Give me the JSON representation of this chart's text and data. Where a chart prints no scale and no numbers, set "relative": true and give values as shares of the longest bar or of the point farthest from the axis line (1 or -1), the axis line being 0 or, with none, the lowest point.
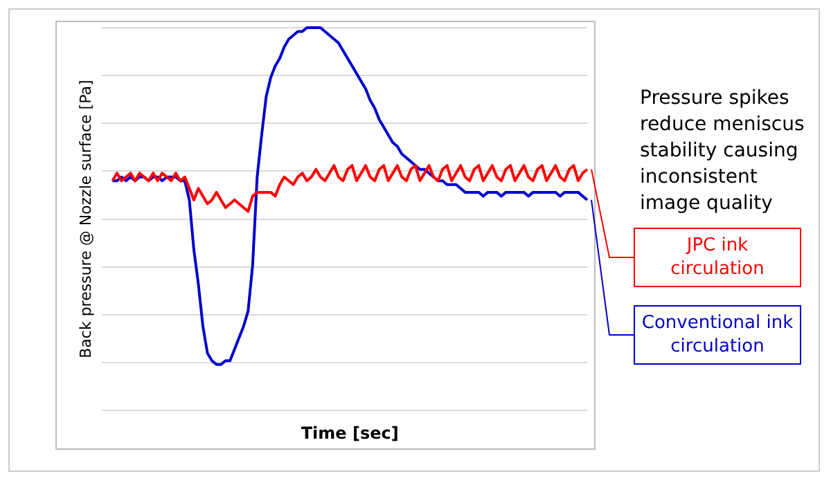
{
  "chart_data": {
    "type": "line",
    "relative": true,
    "xlabel": "Time [sec]",
    "ylabel": "Back pressure @ Nozzle surface [Pa]",
    "grid": "y",
    "legend": false,
    "marker": "none",
    "line_style": "solid",
    "annotations": [
      "Pressure spikes reduce meniscus stability causing inconsistent image quality"
    ],
    "categories": [
      null,
      null,
      null,
      null,
      null,
      null,
      null,
      null,
      null,
      null,
      null,
      null,
      null,
      null,
      null,
      null,
      null,
      null,
      null,
      null,
      null,
      null,
      null,
      null,
      null,
      null,
      null,
      null,
      null,
      null,
      null,
      null,
      null,
      null,
      null,
      null,
      null,
      null,
      null,
      null,
      null,
      null,
      null,
      null,
      null,
      null,
      null,
      null,
      null,
      null,
      null,
      null,
      null,
      null,
      null,
      null,
      null,
      null,
      null,
      null,
      null,
      null,
      null,
      null,
      null,
      null,
      null,
      null,
      null,
      null,
      null,
      null,
      null,
      null,
      null,
      null,
      null,
      null,
      null,
      null,
      null,
      null,
      null,
      null,
      null,
      null,
      null,
      null,
      null,
      null,
      null,
      null,
      null,
      null,
      null,
      null,
      null,
      null,
      null,
      null,
      null,
      null,
      null,
      null,
      null,
      null
    ],
    "series": [
      {
        "name": "JPC ink circulation",
        "color": "#ff0000",
        "values": [
          0.6,
          0.62,
          0.6,
          0.61,
          0.62,
          0.6,
          0.62,
          0.61,
          0.6,
          0.62,
          0.6,
          0.62,
          0.61,
          0.6,
          0.62,
          0.6,
          0.61,
          0.58,
          0.55,
          0.58,
          0.56,
          0.54,
          0.55,
          0.57,
          0.55,
          0.53,
          0.54,
          0.55,
          0.54,
          0.53,
          0.52,
          0.56,
          0.57,
          0.57,
          0.57,
          0.57,
          0.56,
          0.59,
          0.61,
          0.6,
          0.59,
          0.61,
          0.62,
          0.6,
          0.61,
          0.63,
          0.61,
          0.6,
          0.62,
          0.64,
          0.61,
          0.6,
          0.63,
          0.64,
          0.6,
          0.62,
          0.64,
          0.61,
          0.6,
          0.63,
          0.64,
          0.6,
          0.62,
          0.64,
          0.61,
          0.6,
          0.63,
          0.64,
          0.6,
          0.62,
          0.64,
          0.61,
          0.6,
          0.63,
          0.64,
          0.6,
          0.62,
          0.64,
          0.61,
          0.6,
          0.63,
          0.64,
          0.6,
          0.62,
          0.64,
          0.61,
          0.6,
          0.63,
          0.64,
          0.6,
          0.62,
          0.64,
          0.61,
          0.6,
          0.63,
          0.64,
          0.6,
          0.62,
          0.64,
          0.61,
          0.6,
          0.63,
          0.64,
          0.6,
          0.62,
          0.63
        ]
      },
      {
        "name": "Conventional ink circulation",
        "color": "#0000cc",
        "values": [
          0.6,
          0.6,
          0.61,
          0.6,
          0.61,
          0.6,
          0.61,
          0.61,
          0.6,
          0.61,
          0.61,
          0.6,
          0.61,
          0.61,
          0.61,
          0.6,
          0.6,
          0.55,
          0.42,
          0.33,
          0.22,
          0.15,
          0.13,
          0.12,
          0.12,
          0.13,
          0.13,
          0.16,
          0.19,
          0.22,
          0.26,
          0.38,
          0.61,
          0.72,
          0.82,
          0.87,
          0.9,
          0.92,
          0.95,
          0.97,
          0.98,
          0.99,
          0.99,
          1.0,
          1.0,
          1.0,
          1.0,
          0.99,
          0.98,
          0.97,
          0.96,
          0.94,
          0.92,
          0.9,
          0.88,
          0.86,
          0.84,
          0.81,
          0.79,
          0.76,
          0.74,
          0.72,
          0.7,
          0.69,
          0.67,
          0.66,
          0.65,
          0.64,
          0.63,
          0.63,
          0.62,
          0.61,
          0.6,
          0.6,
          0.59,
          0.59,
          0.59,
          0.58,
          0.57,
          0.57,
          0.57,
          0.57,
          0.56,
          0.57,
          0.57,
          0.57,
          0.56,
          0.57,
          0.57,
          0.57,
          0.57,
          0.57,
          0.56,
          0.57,
          0.57,
          0.57,
          0.57,
          0.57,
          0.57,
          0.56,
          0.57,
          0.57,
          0.57,
          0.57,
          0.56,
          0.55
        ]
      }
    ]
  }
}
